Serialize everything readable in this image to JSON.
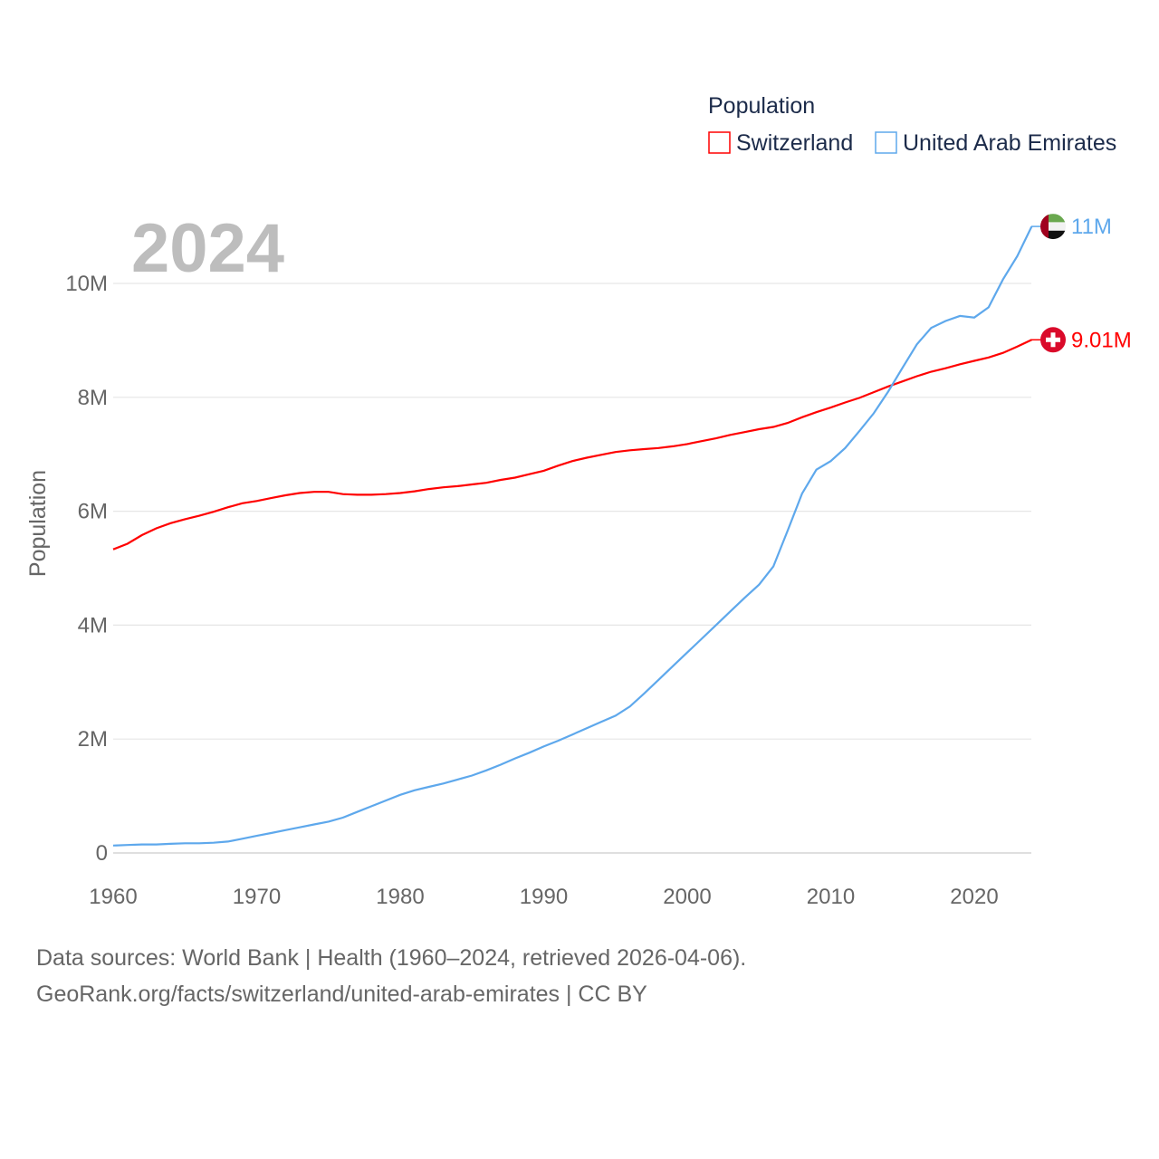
{
  "chart_data": {
    "type": "line",
    "title_year": "2024",
    "ylabel": "Population",
    "legend_title": "Population",
    "legend_position": "top-right",
    "ylim": [
      0,
      11000000
    ],
    "xlim": [
      1960,
      2024
    ],
    "y_ticks": [
      {
        "v": 0,
        "label": "0"
      },
      {
        "v": 2,
        "label": "2M"
      },
      {
        "v": 4,
        "label": "4M"
      },
      {
        "v": 6,
        "label": "6M"
      },
      {
        "v": 8,
        "label": "8M"
      },
      {
        "v": 10,
        "label": "10M"
      }
    ],
    "x_ticks": [
      1960,
      1970,
      1980,
      1990,
      2000,
      2010,
      2020
    ],
    "x": [
      1960,
      1961,
      1962,
      1963,
      1964,
      1965,
      1966,
      1967,
      1968,
      1969,
      1970,
      1971,
      1972,
      1973,
      1974,
      1975,
      1976,
      1977,
      1978,
      1979,
      1980,
      1981,
      1982,
      1983,
      1984,
      1985,
      1986,
      1987,
      1988,
      1989,
      1990,
      1991,
      1992,
      1993,
      1994,
      1995,
      1996,
      1997,
      1998,
      1999,
      2000,
      2001,
      2002,
      2003,
      2004,
      2005,
      2006,
      2007,
      2008,
      2009,
      2010,
      2011,
      2012,
      2013,
      2014,
      2015,
      2016,
      2017,
      2018,
      2019,
      2020,
      2021,
      2022,
      2023,
      2024
    ],
    "series": [
      {
        "name": "Switzerland",
        "color": "#ff0000",
        "end_label": "9.01M",
        "flag": "switzerland-flag",
        "values_millions": [
          5.33,
          5.43,
          5.58,
          5.7,
          5.79,
          5.86,
          5.92,
          5.99,
          6.07,
          6.14,
          6.18,
          6.23,
          6.28,
          6.32,
          6.34,
          6.34,
          6.3,
          6.29,
          6.29,
          6.3,
          6.32,
          6.35,
          6.39,
          6.42,
          6.44,
          6.47,
          6.5,
          6.55,
          6.59,
          6.65,
          6.71,
          6.8,
          6.88,
          6.94,
          6.99,
          7.04,
          7.07,
          7.09,
          7.11,
          7.14,
          7.18,
          7.23,
          7.28,
          7.34,
          7.39,
          7.44,
          7.48,
          7.55,
          7.65,
          7.74,
          7.82,
          7.91,
          7.99,
          8.09,
          8.19,
          8.28,
          8.37,
          8.45,
          8.51,
          8.58,
          8.64,
          8.7,
          8.78,
          8.89,
          9.01
        ]
      },
      {
        "name": "United Arab Emirates",
        "color": "#5ea8ec",
        "end_label": "11M",
        "flag": "uae-flag",
        "values_millions": [
          0.13,
          0.14,
          0.15,
          0.15,
          0.16,
          0.17,
          0.17,
          0.18,
          0.2,
          0.25,
          0.3,
          0.35,
          0.4,
          0.45,
          0.5,
          0.55,
          0.62,
          0.72,
          0.82,
          0.92,
          1.02,
          1.1,
          1.16,
          1.22,
          1.29,
          1.36,
          1.45,
          1.55,
          1.66,
          1.76,
          1.87,
          1.97,
          2.08,
          2.19,
          2.3,
          2.41,
          2.57,
          2.8,
          3.04,
          3.28,
          3.52,
          3.76,
          4.0,
          4.24,
          4.48,
          4.71,
          5.03,
          5.66,
          6.31,
          6.73,
          6.88,
          7.11,
          7.41,
          7.72,
          8.1,
          8.52,
          8.93,
          9.22,
          9.34,
          9.43,
          9.4,
          9.58,
          10.07,
          10.48,
          11.0
        ]
      }
    ]
  },
  "footer": {
    "line1": "Data sources: World Bank | Health (1960–2024, retrieved 2026-04-06).",
    "line2": "GeoRank.org/facts/switzerland/united-arab-emirates | CC BY"
  }
}
